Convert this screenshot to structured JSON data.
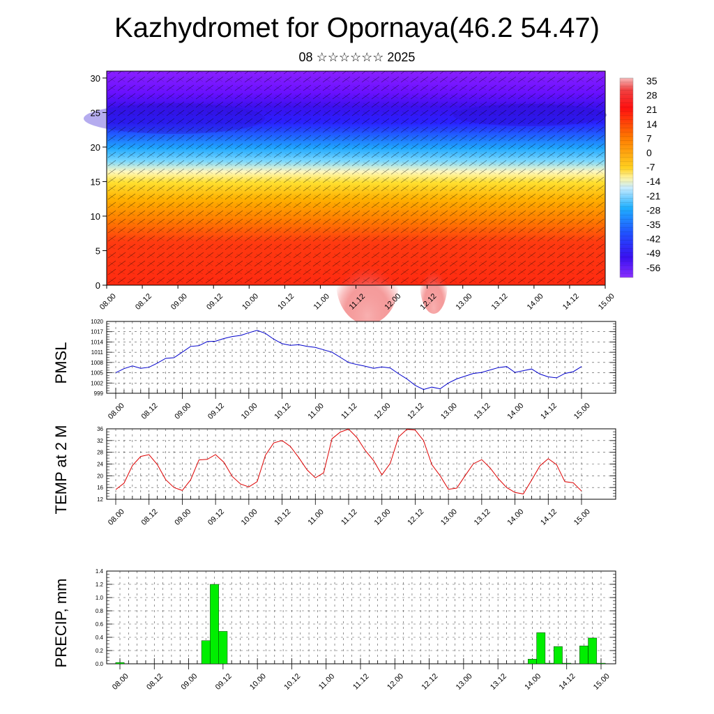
{
  "title": "Kazhydromet for Opornaya(46.2 54.47)",
  "subtitle": "08 ☆☆☆☆☆☆ 2025",
  "chart_data": [
    {
      "type": "heatmap",
      "name": "vertical-section",
      "x_tick_labels": [
        "08.00",
        "08.12",
        "09.00",
        "09.12",
        "10.00",
        "10.12",
        "11.00",
        "11.12",
        "12.00",
        "12.12",
        "13.00",
        "13.12",
        "14.00",
        "14.12",
        "15.00"
      ],
      "y_tick_labels": [
        "0",
        "5",
        "10",
        "15",
        "20",
        "25",
        "30"
      ],
      "ylim": [
        0,
        31
      ],
      "colorbar_labels": [
        "35",
        "28",
        "21",
        "14",
        "7",
        "0",
        "-7",
        "-14",
        "-21",
        "-28",
        "-35",
        "-42",
        "-49",
        "-56"
      ],
      "colorbar_range": [
        -63,
        40
      ],
      "colors": {
        "cold": "#7a00ff",
        "blue": "#3040ff",
        "cyan": "#30b8ff",
        "yellow": "#ffe020",
        "orange": "#ff9a00",
        "red": "#f01010",
        "hot": "#f08080"
      }
    },
    {
      "type": "line",
      "ylabel": "PMSL",
      "x_tick_labels": [
        "08.00",
        "08.12",
        "09.00",
        "09.12",
        "10.00",
        "10.12",
        "11.00",
        "11.12",
        "12.00",
        "12.12",
        "13.00",
        "13.12",
        "14.00",
        "14.12",
        "15.00"
      ],
      "y_tick_labels": [
        "999",
        "1002",
        "1005",
        "1008",
        "1011",
        "1014",
        "1017",
        "1020"
      ],
      "ylim": [
        999,
        1020
      ],
      "color": "#0000cc",
      "values": [
        1005,
        1006.2,
        1007,
        1006.3,
        1006.6,
        1007.8,
        1009.2,
        1009.4,
        1011,
        1012.7,
        1012.9,
        1014.1,
        1014.2,
        1015,
        1015.6,
        1015.9,
        1016.7,
        1017.4,
        1016.5,
        1014.8,
        1013.5,
        1013,
        1013.2,
        1012.7,
        1012.4,
        1011.7,
        1011,
        1009.5,
        1008,
        1007.4,
        1006.9,
        1006.3,
        1006.7,
        1006.4,
        1004.7,
        1003.2,
        1001.3,
        1000.1,
        1000.8,
        1000.3,
        1002,
        1003.2,
        1004,
        1004.8,
        1005.1,
        1005.8,
        1006.5,
        1006.8,
        1005.1,
        1005.6,
        1006.1,
        1004.6,
        1003.8,
        1003.5,
        1004.8,
        1005.3,
        1006.8
      ]
    },
    {
      "type": "line",
      "ylabel": "TEMP at 2 M",
      "x_tick_labels": [
        "08.00",
        "08.12",
        "09.00",
        "09.12",
        "10.00",
        "10.12",
        "11.00",
        "11.12",
        "12.00",
        "12.12",
        "13.00",
        "13.12",
        "14.00",
        "14.12",
        "15.00"
      ],
      "y_tick_labels": [
        "12",
        "16",
        "20",
        "24",
        "28",
        "32",
        "36"
      ],
      "ylim": [
        12,
        36
      ],
      "color": "#dd0000",
      "values": [
        15.3,
        17.5,
        23.5,
        26.6,
        27.2,
        23.8,
        18.7,
        16,
        15,
        18.6,
        25.4,
        25.6,
        27.2,
        24.6,
        19.8,
        17.2,
        16.2,
        18,
        27,
        31.2,
        32,
        30,
        26.2,
        22,
        19.3,
        21,
        32.6,
        34.9,
        35.9,
        33,
        28.6,
        25.2,
        20.3,
        24.2,
        33.2,
        35.8,
        35.6,
        32,
        23.8,
        20,
        15.4,
        15.8,
        20,
        24.1,
        25.5,
        22.7,
        19,
        16,
        14.3,
        13.8,
        18.5,
        23.4,
        25.8,
        23.8,
        18,
        17.6,
        14.8
      ]
    },
    {
      "type": "bar",
      "ylabel": "PRECIP, mm",
      "x_tick_labels": [
        "08.00",
        "08.12",
        "09.00",
        "09.12",
        "10.00",
        "10.12",
        "11.00",
        "11.12",
        "12.00",
        "12.12",
        "13.00",
        "13.12",
        "14.00",
        "14.12",
        "15.00"
      ],
      "y_tick_labels": [
        "0.0",
        "0.2",
        "0.4",
        "0.6",
        "0.8",
        "1.0",
        "1.2",
        "1.4"
      ],
      "ylim": [
        0,
        1.4
      ],
      "color": "#00ee00",
      "values": [
        0.02,
        0,
        0,
        0,
        0,
        0,
        0,
        0,
        0,
        0,
        0.35,
        1.2,
        0.49,
        0,
        0,
        0,
        0,
        0,
        0,
        0,
        0,
        0,
        0,
        0,
        0,
        0,
        0,
        0,
        0,
        0,
        0,
        0,
        0,
        0,
        0,
        0,
        0,
        0,
        0,
        0,
        0,
        0,
        0,
        0,
        0,
        0,
        0,
        0,
        0.07,
        0.47,
        0.01,
        0.26,
        0.01,
        0,
        0.27,
        0.39,
        0.01
      ]
    }
  ]
}
